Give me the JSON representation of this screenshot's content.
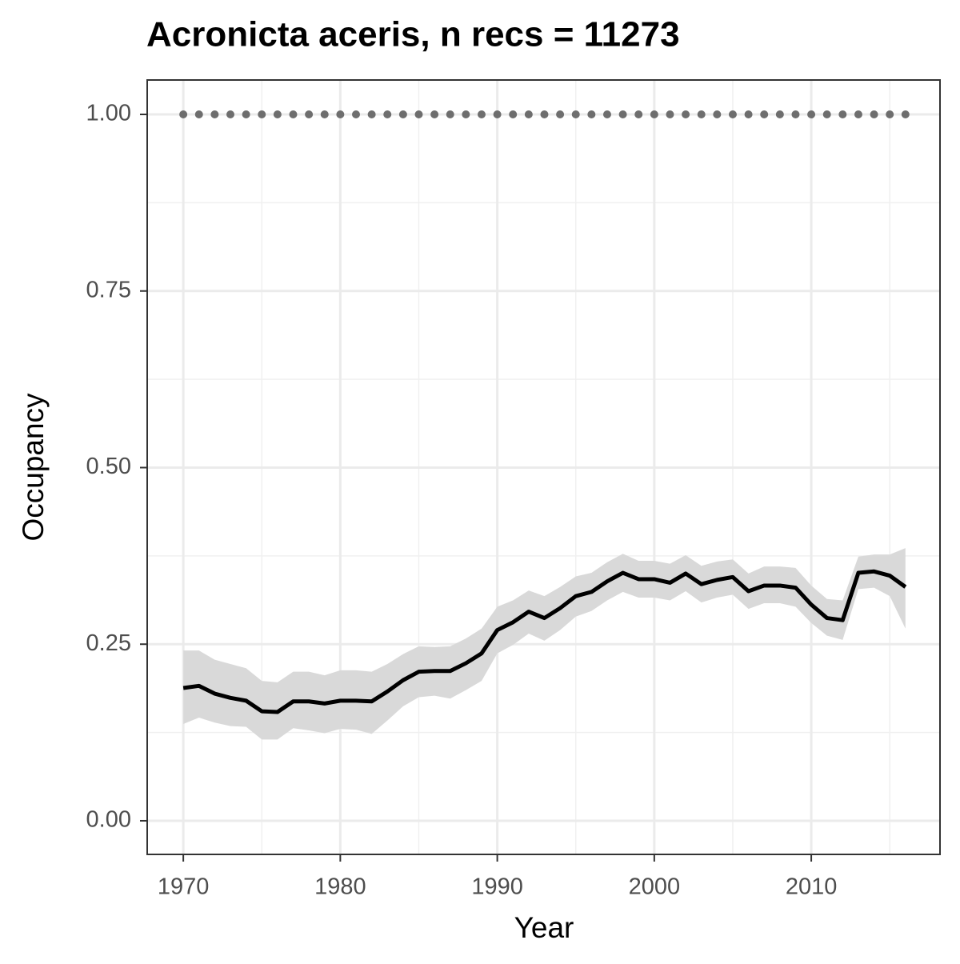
{
  "chart_data": {
    "type": "line",
    "title": "Acronicta aceris, n recs = 11273",
    "xlabel": "Year",
    "ylabel": "Occupancy",
    "x": [
      1970,
      1971,
      1972,
      1973,
      1974,
      1975,
      1976,
      1977,
      1978,
      1979,
      1980,
      1981,
      1982,
      1983,
      1984,
      1985,
      1986,
      1987,
      1988,
      1989,
      1990,
      1991,
      1992,
      1993,
      1994,
      1995,
      1996,
      1997,
      1998,
      1999,
      2000,
      2001,
      2002,
      2003,
      2004,
      2005,
      2006,
      2007,
      2008,
      2009,
      2010,
      2011,
      2012,
      2013,
      2014,
      2015,
      2016
    ],
    "values": [
      0.188,
      0.191,
      0.18,
      0.174,
      0.17,
      0.155,
      0.154,
      0.169,
      0.169,
      0.166,
      0.17,
      0.17,
      0.169,
      0.183,
      0.199,
      0.211,
      0.212,
      0.212,
      0.223,
      0.237,
      0.27,
      0.281,
      0.296,
      0.287,
      0.301,
      0.318,
      0.324,
      0.339,
      0.351,
      0.342,
      0.342,
      0.337,
      0.35,
      0.335,
      0.341,
      0.345,
      0.325,
      0.333,
      0.333,
      0.33,
      0.306,
      0.287,
      0.284,
      0.351,
      0.353,
      0.347,
      0.331
    ],
    "upper": [
      0.241,
      0.241,
      0.228,
      0.222,
      0.216,
      0.198,
      0.196,
      0.211,
      0.211,
      0.206,
      0.213,
      0.213,
      0.211,
      0.222,
      0.236,
      0.247,
      0.246,
      0.247,
      0.258,
      0.272,
      0.303,
      0.312,
      0.326,
      0.318,
      0.331,
      0.346,
      0.351,
      0.366,
      0.378,
      0.368,
      0.368,
      0.364,
      0.376,
      0.361,
      0.367,
      0.37,
      0.35,
      0.36,
      0.36,
      0.358,
      0.333,
      0.314,
      0.312,
      0.374,
      0.377,
      0.377,
      0.386
    ],
    "lower": [
      0.137,
      0.146,
      0.139,
      0.134,
      0.133,
      0.115,
      0.115,
      0.131,
      0.128,
      0.124,
      0.13,
      0.129,
      0.123,
      0.142,
      0.162,
      0.175,
      0.177,
      0.173,
      0.185,
      0.198,
      0.237,
      0.249,
      0.265,
      0.255,
      0.27,
      0.289,
      0.297,
      0.312,
      0.324,
      0.316,
      0.316,
      0.312,
      0.325,
      0.309,
      0.316,
      0.32,
      0.3,
      0.308,
      0.308,
      0.303,
      0.28,
      0.262,
      0.256,
      0.328,
      0.33,
      0.318,
      0.272
    ],
    "reference": [
      1,
      1,
      1,
      1,
      1,
      1,
      1,
      1,
      1,
      1,
      1,
      1,
      1,
      1,
      1,
      1,
      1,
      1,
      1,
      1,
      1,
      1,
      1,
      1,
      1,
      1,
      1,
      1,
      1,
      1,
      1,
      1,
      1,
      1,
      1,
      1,
      1,
      1,
      1,
      1,
      1,
      1,
      1,
      1,
      1,
      1,
      1
    ],
    "line_color": "#000000",
    "band_color": "#d9d9d9",
    "reference_color": "#6e6e6e",
    "xlim": [
      1967.7,
      2018.2
    ],
    "ylim": [
      -0.0476,
      1.0487
    ],
    "xticks": [
      1970,
      1980,
      1990,
      2000,
      2010
    ],
    "minor_xticks": [
      1975,
      1985,
      1995,
      2005,
      2015
    ],
    "yticks": [
      {
        "value": 0,
        "label": "0.00"
      },
      {
        "value": 0.25,
        "label": "0.25"
      },
      {
        "value": 0.5,
        "label": "0.50"
      },
      {
        "value": 0.75,
        "label": "0.75"
      },
      {
        "value": 1,
        "label": "1.00"
      }
    ],
    "minor_yticks": [
      0.125,
      0.375,
      0.625,
      0.875
    ],
    "grid": true
  }
}
